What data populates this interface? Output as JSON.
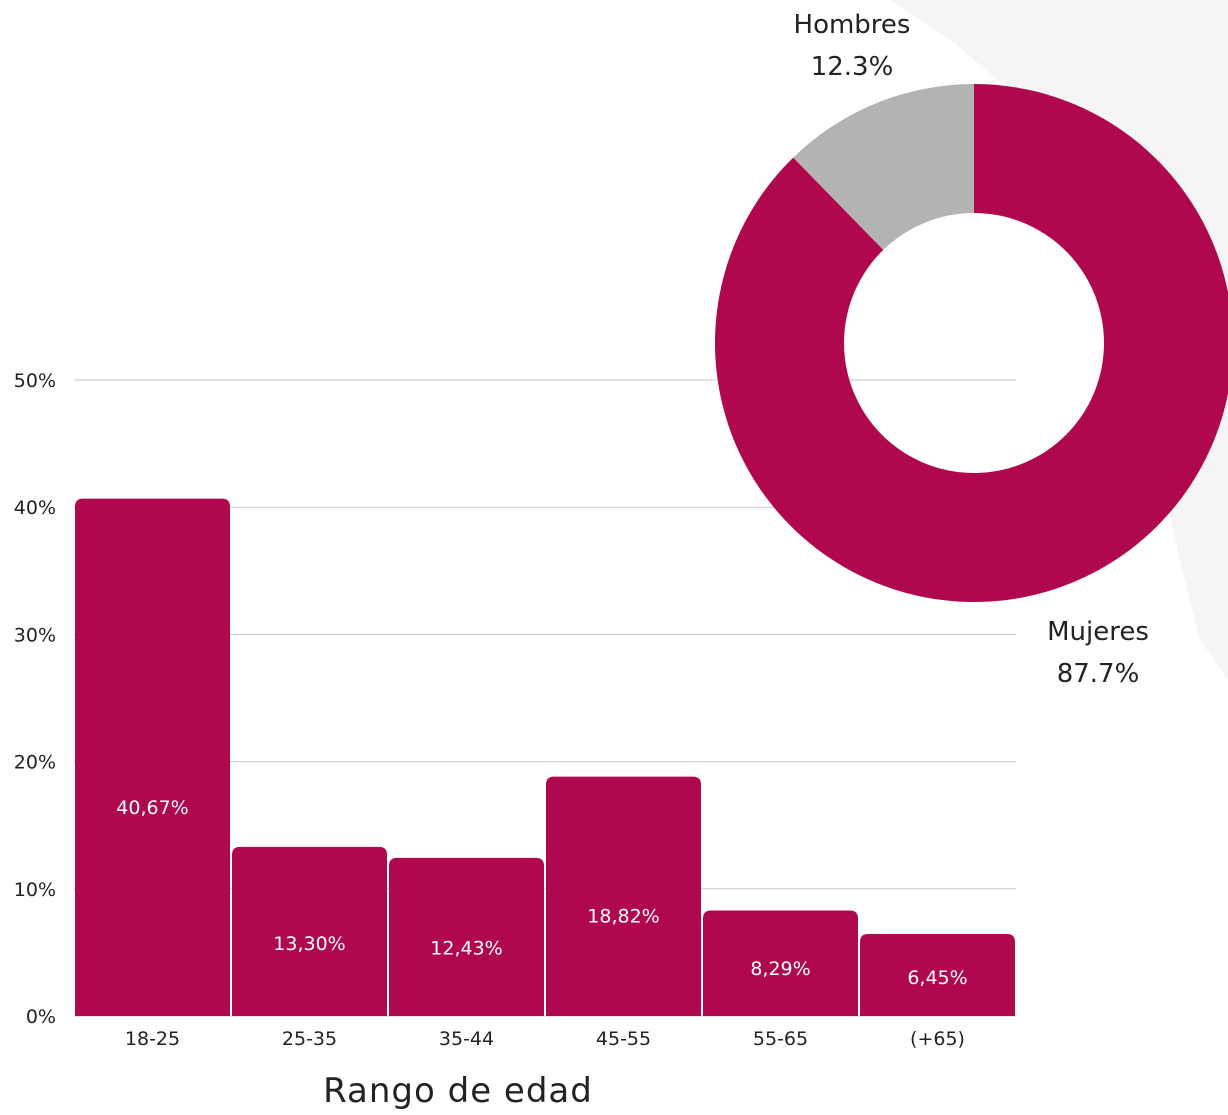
{
  "chart_data": [
    {
      "type": "bar",
      "title": "",
      "xlabel": "Rango de edad",
      "ylabel": "",
      "categories": [
        "18-25",
        "25-35",
        "35-44",
        "45-55",
        "55-65",
        "(+65)"
      ],
      "values": [
        40.67,
        13.3,
        12.43,
        18.82,
        8.29,
        6.45
      ],
      "value_labels": [
        "40,67%",
        "13,30%",
        "12,43%",
        "18,82%",
        "8,29%",
        "6,45%"
      ],
      "ylim": [
        0,
        50
      ],
      "yticks": [
        0,
        10,
        20,
        30,
        40,
        50
      ],
      "ytick_labels": [
        "0%",
        "10%",
        "20%",
        "30%",
        "40%",
        "50%"
      ],
      "grid": true,
      "color": "#b0084f"
    },
    {
      "type": "pie",
      "donut": true,
      "slices": [
        {
          "name": "Hombres",
          "value": 12.3,
          "label": "12.3%",
          "color": "#b3b3b3"
        },
        {
          "name": "Mujeres",
          "value": 87.7,
          "label": "87.7%",
          "color": "#b0084f"
        }
      ]
    }
  ]
}
